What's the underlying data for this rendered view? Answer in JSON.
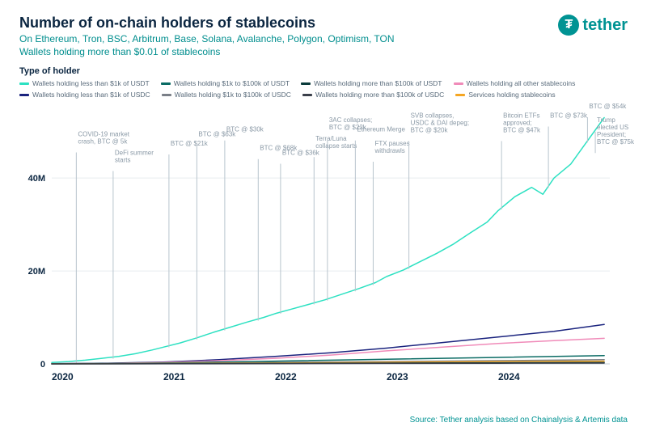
{
  "header": {
    "title": "Number of on-chain holders of stablecoins",
    "subtitle_line1": "On Ethereum, Tron, BSC, Arbitrum, Base, Solana, Avalanche, Polygon, Optimism, TON",
    "subtitle_line2": "Wallets holding more than $0.01 of stablecoins"
  },
  "logo": {
    "text": "tether",
    "glyph": "₮"
  },
  "legend": {
    "title": "Type of holder",
    "items": [
      {
        "label": "Wallets holding less than $1k of USDT",
        "color": "#2de1c2"
      },
      {
        "label": "Wallets holding $1k to $100k of USDT",
        "color": "#0a6b64"
      },
      {
        "label": "Wallets holding more than $100k of USDT",
        "color": "#0a3a3a"
      },
      {
        "label": "Wallets holding all other stablecoins",
        "color": "#f08bb9"
      },
      {
        "label": "Wallets holding less than $1k of USDC",
        "color": "#1a237e"
      },
      {
        "label": "Wallets holding $1k to $100k of USDC",
        "color": "#7a7f87"
      },
      {
        "label": "Wallets holding more than $100k of USDC",
        "color": "#3a3f4a"
      },
      {
        "label": "Services holding stablecoins",
        "color": "#f5a623"
      }
    ]
  },
  "chart": {
    "type": "line",
    "background_color": "#ffffff",
    "grid_color": "#e6ecef",
    "axis_text_color": "#0a2540",
    "xlim": [
      2020,
      2025
    ],
    "ylim": [
      0,
      55
    ],
    "ytick_step": 20,
    "ytick_labels": [
      "0",
      "20M",
      "40M"
    ],
    "xtick_labels": [
      "2020",
      "2021",
      "2022",
      "2023",
      "2024"
    ],
    "line_width": 1.5,
    "series": [
      {
        "name": "usdt_lt1k",
        "color": "#2de1c2",
        "data": [
          [
            2020.0,
            0.3
          ],
          [
            2020.15,
            0.5
          ],
          [
            2020.3,
            0.8
          ],
          [
            2020.45,
            1.2
          ],
          [
            2020.6,
            1.6
          ],
          [
            2020.75,
            2.2
          ],
          [
            2020.9,
            3.0
          ],
          [
            2021.0,
            3.6
          ],
          [
            2021.15,
            4.5
          ],
          [
            2021.3,
            5.6
          ],
          [
            2021.45,
            6.8
          ],
          [
            2021.6,
            7.9
          ],
          [
            2021.75,
            9.0
          ],
          [
            2021.9,
            10.0
          ],
          [
            2022.0,
            10.8
          ],
          [
            2022.15,
            11.8
          ],
          [
            2022.3,
            12.8
          ],
          [
            2022.45,
            13.8
          ],
          [
            2022.6,
            15.0
          ],
          [
            2022.75,
            16.2
          ],
          [
            2022.9,
            17.5
          ],
          [
            2023.0,
            18.8
          ],
          [
            2023.15,
            20.2
          ],
          [
            2023.3,
            22.0
          ],
          [
            2023.45,
            23.8
          ],
          [
            2023.6,
            25.8
          ],
          [
            2023.75,
            28.2
          ],
          [
            2023.9,
            30.5
          ],
          [
            2024.0,
            33.0
          ],
          [
            2024.15,
            36.0
          ],
          [
            2024.3,
            38.0
          ],
          [
            2024.4,
            36.5
          ],
          [
            2024.5,
            40.0
          ],
          [
            2024.65,
            43.0
          ],
          [
            2024.8,
            48.0
          ],
          [
            2024.95,
            53.0
          ]
        ]
      },
      {
        "name": "usdc_lt1k",
        "color": "#1a237e",
        "data": [
          [
            2020.0,
            0.05
          ],
          [
            2020.5,
            0.15
          ],
          [
            2021.0,
            0.4
          ],
          [
            2021.5,
            0.9
          ],
          [
            2022.0,
            1.6
          ],
          [
            2022.5,
            2.4
          ],
          [
            2023.0,
            3.4
          ],
          [
            2023.5,
            4.6
          ],
          [
            2024.0,
            5.8
          ],
          [
            2024.5,
            7.0
          ],
          [
            2024.95,
            8.5
          ]
        ]
      },
      {
        "name": "other_stable",
        "color": "#f08bb9",
        "data": [
          [
            2020.0,
            0.05
          ],
          [
            2020.5,
            0.1
          ],
          [
            2021.0,
            0.3
          ],
          [
            2021.5,
            0.7
          ],
          [
            2022.0,
            1.2
          ],
          [
            2022.5,
            1.9
          ],
          [
            2023.0,
            2.8
          ],
          [
            2023.5,
            3.6
          ],
          [
            2024.0,
            4.4
          ],
          [
            2024.5,
            5.0
          ],
          [
            2024.95,
            5.5
          ]
        ]
      },
      {
        "name": "usdt_1k_100k",
        "color": "#0a6b64",
        "data": [
          [
            2020.0,
            0.02
          ],
          [
            2021.0,
            0.2
          ],
          [
            2022.0,
            0.6
          ],
          [
            2023.0,
            1.0
          ],
          [
            2024.0,
            1.4
          ],
          [
            2024.95,
            1.8
          ]
        ]
      },
      {
        "name": "usdc_1k_100k",
        "color": "#7a7f87",
        "data": [
          [
            2020.0,
            0.01
          ],
          [
            2021.0,
            0.1
          ],
          [
            2022.0,
            0.3
          ],
          [
            2023.0,
            0.5
          ],
          [
            2024.0,
            0.7
          ],
          [
            2024.95,
            0.9
          ]
        ]
      },
      {
        "name": "services",
        "color": "#f5a623",
        "data": [
          [
            2020.0,
            0.01
          ],
          [
            2021.0,
            0.08
          ],
          [
            2022.0,
            0.2
          ],
          [
            2023.0,
            0.35
          ],
          [
            2024.0,
            0.5
          ],
          [
            2024.95,
            0.6
          ]
        ]
      },
      {
        "name": "usdt_gt100k",
        "color": "#0a3a3a",
        "data": [
          [
            2020.0,
            0.005
          ],
          [
            2021.0,
            0.04
          ],
          [
            2022.0,
            0.1
          ],
          [
            2023.0,
            0.18
          ],
          [
            2024.0,
            0.25
          ],
          [
            2024.95,
            0.3
          ]
        ]
      },
      {
        "name": "usdc_gt100k",
        "color": "#3a3f4a",
        "data": [
          [
            2020.0,
            0.003
          ],
          [
            2021.0,
            0.02
          ],
          [
            2022.0,
            0.06
          ],
          [
            2023.0,
            0.1
          ],
          [
            2024.0,
            0.14
          ],
          [
            2024.95,
            0.18
          ]
        ]
      }
    ],
    "annotations": [
      {
        "x": 2020.22,
        "top_y": 49,
        "lines": [
          "COVID-19 market",
          "crash, BTC @ 5k"
        ]
      },
      {
        "x": 2020.55,
        "top_y": 45,
        "lines": [
          "DeFi summer",
          "starts"
        ]
      },
      {
        "x": 2021.05,
        "top_y": 47,
        "lines": [
          "BTC @ $21k"
        ]
      },
      {
        "x": 2021.3,
        "top_y": 49,
        "lines": [
          "BTC @ $63k"
        ]
      },
      {
        "x": 2021.55,
        "top_y": 50,
        "lines": [
          "BTC @ $30k"
        ]
      },
      {
        "x": 2021.85,
        "top_y": 46,
        "lines": [
          "BTC @ $68k"
        ]
      },
      {
        "x": 2022.05,
        "top_y": 45,
        "lines": [
          "BTC @ $36k"
        ]
      },
      {
        "x": 2022.35,
        "top_y": 48,
        "lines": [
          "Terra/Luna",
          "collapse starts"
        ]
      },
      {
        "x": 2022.47,
        "top_y": 52,
        "lines": [
          "3AC collapses;",
          "BTC @ $22k"
        ]
      },
      {
        "x": 2022.72,
        "top_y": 50,
        "lines": [
          "Ethereum Merge"
        ]
      },
      {
        "x": 2022.88,
        "top_y": 47,
        "lines": [
          "FTX pauses",
          "withdrawls"
        ]
      },
      {
        "x": 2023.2,
        "top_y": 53,
        "lines": [
          "SVB collapses,",
          "USDC & DAI depeg;",
          "BTC @ $20k"
        ]
      },
      {
        "x": 2024.03,
        "top_y": 53,
        "lines": [
          "Bitcoin ETFs",
          "approved;",
          "BTC @ $47k"
        ]
      },
      {
        "x": 2024.45,
        "top_y": 53,
        "lines": [
          "BTC @ $73k"
        ]
      },
      {
        "x": 2024.8,
        "top_y": 55,
        "lines": [
          "BTC @ $54k"
        ]
      },
      {
        "x": 2024.87,
        "top_y": 52,
        "lines": [
          "Trump",
          "elected US",
          "President;",
          "BTC @ $75k"
        ],
        "align": "right"
      }
    ]
  },
  "source": "Source: Tether analysis based on Chainalysis & Artemis data"
}
